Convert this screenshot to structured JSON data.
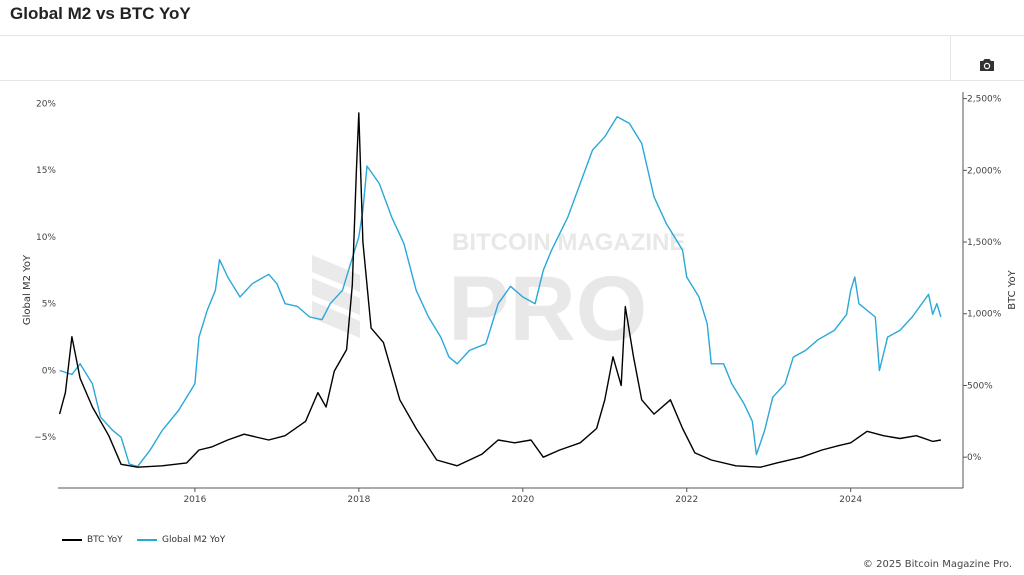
{
  "title": "Global M2 vs BTC YoY",
  "toolbar": {
    "camera_icon": "camera-icon"
  },
  "watermark": {
    "line1": "BITCOIN MAGAZINE",
    "line2": "PRO"
  },
  "footer": "© 2025 Bitcoin Magazine Pro.",
  "legend": [
    {
      "label": "BTC YoY",
      "color": "#000000"
    },
    {
      "label": "Global M2 YoY",
      "color": "#2aa8d8"
    }
  ],
  "chart_data": {
    "type": "line",
    "title": "Global M2 vs BTC YoY",
    "xlim": [
      2014.33,
      2025.37
    ],
    "x_ticks": [
      2016,
      2018,
      2020,
      2022,
      2024
    ],
    "x_tick_labels": [
      "2016",
      "2018",
      "2020",
      "2022",
      "2024"
    ],
    "y_left": {
      "label": "Global M2 YoY",
      "ylim": [
        -8.8,
        21
      ],
      "ticks": [
        -5,
        0,
        5,
        10,
        15,
        20
      ],
      "tick_labels": [
        "−5%",
        "0%",
        "5%",
        "10%",
        "15%",
        "20%"
      ]
    },
    "y_right": {
      "label": "BTC YoY",
      "ylim": [
        -215,
        2560
      ],
      "ticks": [
        0,
        500,
        1000,
        1500,
        2000,
        2500
      ],
      "tick_labels": [
        "0%",
        "500%",
        "1,000%",
        "1,500%",
        "2,000%",
        "2,500%"
      ]
    },
    "grid": false,
    "legend_position": "bottom-left",
    "series": [
      {
        "name": "BTC YoY",
        "axis": "right",
        "color": "#000000",
        "x": [
          2014.35,
          2014.42,
          2014.5,
          2014.6,
          2014.75,
          2014.95,
          2015.1,
          2015.3,
          2015.6,
          2015.9,
          2016.05,
          2016.2,
          2016.4,
          2016.6,
          2016.9,
          2017.1,
          2017.35,
          2017.5,
          2017.6,
          2017.7,
          2017.85,
          2017.92,
          2017.97,
          2018.0,
          2018.05,
          2018.15,
          2018.3,
          2018.5,
          2018.7,
          2018.95,
          2019.2,
          2019.5,
          2019.7,
          2019.9,
          2020.1,
          2020.25,
          2020.45,
          2020.7,
          2020.9,
          2021.0,
          2021.1,
          2021.2,
          2021.25,
          2021.35,
          2021.45,
          2021.6,
          2021.8,
          2021.95,
          2022.1,
          2022.3,
          2022.6,
          2022.9,
          2023.1,
          2023.4,
          2023.65,
          2023.85,
          2024.0,
          2024.2,
          2024.4,
          2024.6,
          2024.8,
          2025.0,
          2025.1
        ],
        "values": [
          300,
          450,
          840,
          550,
          350,
          150,
          -50,
          -70,
          -60,
          -40,
          50,
          70,
          120,
          160,
          120,
          150,
          250,
          450,
          350,
          600,
          750,
          1200,
          2000,
          2400,
          1500,
          900,
          800,
          400,
          200,
          -20,
          -60,
          20,
          120,
          100,
          120,
          0,
          50,
          100,
          200,
          400,
          700,
          500,
          1050,
          700,
          400,
          300,
          400,
          200,
          30,
          -20,
          -60,
          -70,
          -40,
          0,
          50,
          80,
          100,
          180,
          150,
          130,
          150,
          110,
          120
        ]
      },
      {
        "name": "Global M2 YoY",
        "axis": "left",
        "color": "#2aa8d8",
        "x": [
          2014.35,
          2014.5,
          2014.6,
          2014.75,
          2014.85,
          2015.0,
          2015.1,
          2015.2,
          2015.3,
          2015.45,
          2015.6,
          2015.8,
          2015.95,
          2016.0,
          2016.05,
          2016.15,
          2016.25,
          2016.3,
          2016.4,
          2016.55,
          2016.7,
          2016.9,
          2017.0,
          2017.1,
          2017.25,
          2017.4,
          2017.55,
          2017.65,
          2017.8,
          2017.9,
          2018.0,
          2018.05,
          2018.1,
          2018.25,
          2018.4,
          2018.55,
          2018.7,
          2018.85,
          2019.0,
          2019.1,
          2019.2,
          2019.35,
          2019.55,
          2019.7,
          2019.85,
          2020.0,
          2020.15,
          2020.25,
          2020.35,
          2020.55,
          2020.7,
          2020.85,
          2021.0,
          2021.15,
          2021.3,
          2021.45,
          2021.6,
          2021.75,
          2021.95,
          2022.0,
          2022.15,
          2022.25,
          2022.3,
          2022.45,
          2022.55,
          2022.7,
          2022.8,
          2022.85,
          2022.95,
          2023.05,
          2023.2,
          2023.3,
          2023.45,
          2023.6,
          2023.8,
          2023.95,
          2024.0,
          2024.05,
          2024.1,
          2024.3,
          2024.35,
          2024.45,
          2024.6,
          2024.75,
          2024.95,
          2025.0,
          2025.05,
          2025.1
        ],
        "values": [
          0,
          -0.3,
          0.5,
          -1,
          -3.5,
          -4.5,
          -5,
          -7,
          -7.2,
          -6,
          -4.5,
          -3,
          -1.5,
          -1,
          2.5,
          4.5,
          6,
          8.3,
          7,
          5.5,
          6.5,
          7.2,
          6.5,
          5,
          4.8,
          4,
          3.8,
          5,
          6,
          8,
          10,
          12,
          15.3,
          14,
          11.5,
          9.5,
          6,
          4,
          2.5,
          1,
          0.5,
          1.5,
          2,
          5,
          6.3,
          5.5,
          5,
          7.5,
          9,
          11.5,
          14,
          16.5,
          17.5,
          19,
          18.5,
          17,
          13,
          11,
          9,
          7,
          5.5,
          3.5,
          0.5,
          0.5,
          -1,
          -2.5,
          -3.8,
          -6.3,
          -4.5,
          -2,
          -1,
          1,
          1.5,
          2.3,
          3,
          4.2,
          6,
          7,
          5,
          4,
          0,
          2.5,
          3,
          4,
          5.7,
          4.2,
          5,
          4
        ]
      }
    ]
  }
}
